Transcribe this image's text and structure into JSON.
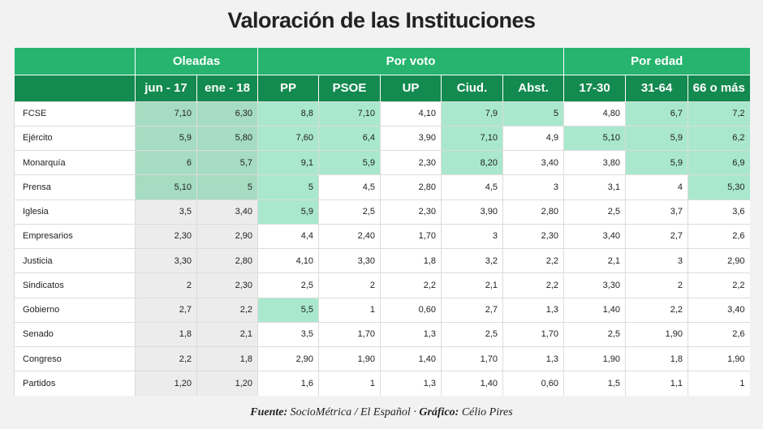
{
  "title": "Valoración de las Instituciones",
  "chart_data": {
    "type": "table",
    "groups": [
      {
        "label": "Oleadas",
        "span": 2
      },
      {
        "label": "Por voto",
        "span": 5
      },
      {
        "label": "Por edad",
        "span": 3
      }
    ],
    "columns": [
      "jun - 17",
      "ene - 18",
      "PP",
      "PSOE",
      "UP",
      "Ciud.",
      "Abst.",
      "17-30",
      "31-64",
      "66 o más"
    ],
    "rows": [
      {
        "label": "FCSE",
        "values": [
          "7,10",
          "6,30",
          "8,8",
          "7,10",
          "4,10",
          "7,9",
          "5",
          "4,80",
          "6,7",
          "7,2"
        ],
        "highlight": [
          1,
          1,
          1,
          1,
          0,
          1,
          1,
          0,
          1,
          1
        ]
      },
      {
        "label": "Ejército",
        "values": [
          "5,9",
          "5,80",
          "7,60",
          "6,4",
          "3,90",
          "7,10",
          "4,9",
          "5,10",
          "5,9",
          "6,2"
        ],
        "highlight": [
          1,
          1,
          1,
          1,
          0,
          1,
          0,
          1,
          1,
          1
        ]
      },
      {
        "label": "Monarquía",
        "values": [
          "6",
          "5,7",
          "9,1",
          "5,9",
          "2,30",
          "8,20",
          "3,40",
          "3,80",
          "5,9",
          "6,9"
        ],
        "highlight": [
          1,
          1,
          1,
          1,
          0,
          1,
          0,
          0,
          1,
          1
        ]
      },
      {
        "label": "Prensa",
        "values": [
          "5,10",
          "5",
          "5",
          "4,5",
          "2,80",
          "4,5",
          "3",
          "3,1",
          "4",
          "5,30"
        ],
        "highlight": [
          1,
          1,
          1,
          0,
          0,
          0,
          0,
          0,
          0,
          1
        ]
      },
      {
        "label": "Iglesia",
        "values": [
          "3,5",
          "3,40",
          "5,9",
          "2,5",
          "2,30",
          "3,90",
          "2,80",
          "2,5",
          "3,7",
          "3,6"
        ],
        "highlight": [
          0,
          0,
          1,
          0,
          0,
          0,
          0,
          0,
          0,
          0
        ]
      },
      {
        "label": "Empresarios",
        "values": [
          "2,30",
          "2,90",
          "4,4",
          "2,40",
          "1,70",
          "3",
          "2,30",
          "3,40",
          "2,7",
          "2,6"
        ],
        "highlight": [
          0,
          0,
          0,
          0,
          0,
          0,
          0,
          0,
          0,
          0
        ]
      },
      {
        "label": "Justicia",
        "values": [
          "3,30",
          "2,80",
          "4,10",
          "3,30",
          "1,8",
          "3,2",
          "2,2",
          "2,1",
          "3",
          "2,90"
        ],
        "highlight": [
          0,
          0,
          0,
          0,
          0,
          0,
          0,
          0,
          0,
          0
        ]
      },
      {
        "label": "Sindicatos",
        "values": [
          "2",
          "2,30",
          "2,5",
          "2",
          "2,2",
          "2,1",
          "2,2",
          "3,30",
          "2",
          "2,2"
        ],
        "highlight": [
          0,
          0,
          0,
          0,
          0,
          0,
          0,
          0,
          0,
          0
        ]
      },
      {
        "label": "Gobierno",
        "values": [
          "2,7",
          "2,2",
          "5,5",
          "1",
          "0,60",
          "2,7",
          "1,3",
          "1,40",
          "2,2",
          "3,40"
        ],
        "highlight": [
          0,
          0,
          1,
          0,
          0,
          0,
          0,
          0,
          0,
          0
        ]
      },
      {
        "label": "Senado",
        "values": [
          "1,8",
          "2,1",
          "3,5",
          "1,70",
          "1,3",
          "2,5",
          "1,70",
          "2,5",
          "1,90",
          "2,6"
        ],
        "highlight": [
          0,
          0,
          0,
          0,
          0,
          0,
          0,
          0,
          0,
          0
        ]
      },
      {
        "label": "Congreso",
        "values": [
          "2,2",
          "1,8",
          "2,90",
          "1,90",
          "1,40",
          "1,70",
          "1,3",
          "1,90",
          "1,8",
          "1,90"
        ],
        "highlight": [
          0,
          0,
          0,
          0,
          0,
          0,
          0,
          0,
          0,
          0
        ]
      },
      {
        "label": "Partidos",
        "values": [
          "1,20",
          "1,20",
          "1,6",
          "1",
          "1,3",
          "1,40",
          "0,60",
          "1,5",
          "1,1",
          "1"
        ],
        "highlight": [
          0,
          0,
          0,
          0,
          0,
          0,
          0,
          0,
          0,
          0
        ]
      }
    ]
  },
  "footer": {
    "source_label": "Fuente:",
    "source_text": "SocioMétrica / El Español",
    "separator": " · ",
    "graphic_label": "Gráfico:",
    "graphic_text": "Célio Pires"
  },
  "colors": {
    "header_top": "#26b46e",
    "header_bottom": "#138a4f",
    "highlight_oleadas": "#a6dcc1",
    "highlight_other": "#a9e8cd",
    "oleadas_plain": "#ececec"
  }
}
